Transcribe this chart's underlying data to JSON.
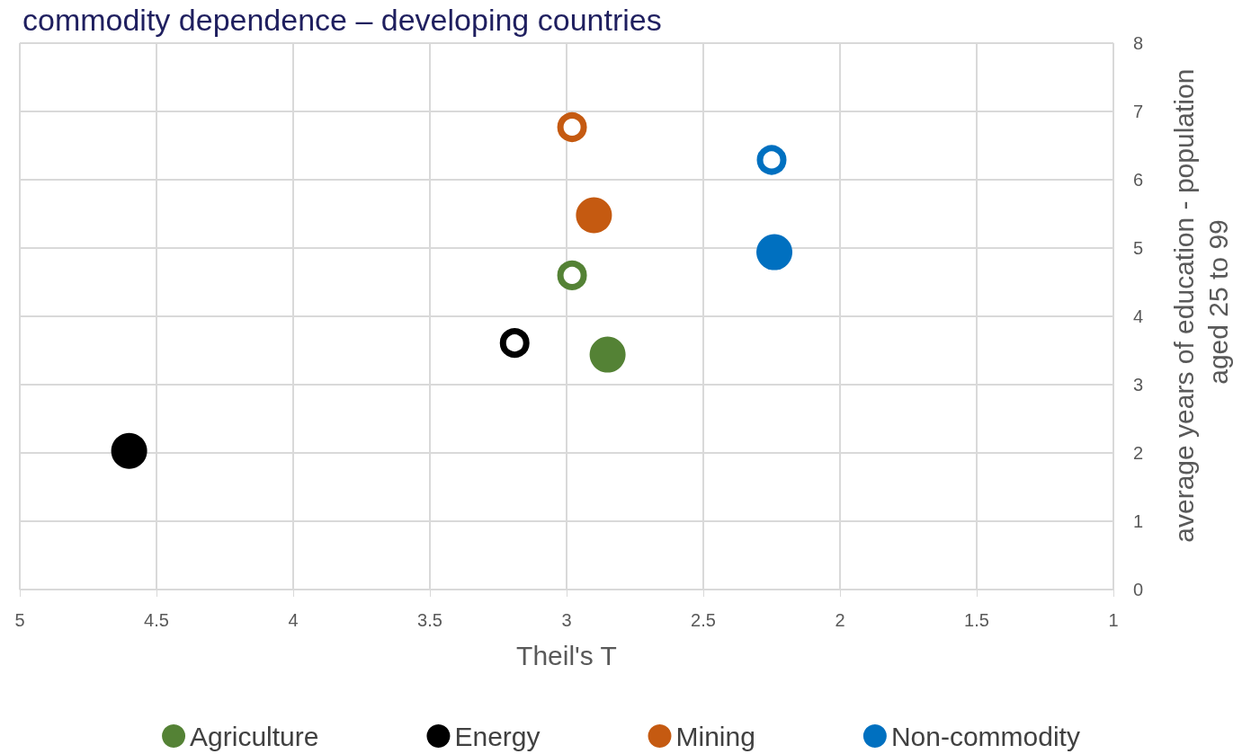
{
  "chart_data": {
    "type": "scatter",
    "title": "commodity dependence – developing countries",
    "xlabel": "Theil's T",
    "ylabel": "average years of education - population aged 25 to 99",
    "series": [
      {
        "name": "Agriculture",
        "color": "#548235",
        "x": [
          2.85
        ],
        "values": [
          3.44
        ]
      },
      {
        "name": "Energy",
        "color": "#000000",
        "x": [
          4.6
        ],
        "values": [
          2.03
        ]
      },
      {
        "name": "Mining",
        "color": "#c55a11",
        "x": [
          2.9
        ],
        "values": [
          5.48
        ]
      },
      {
        "name": "Non-commodity",
        "color": "#0070c0",
        "x": [
          2.24
        ],
        "values": [
          4.94
        ]
      },
      {
        "color": "#548235",
        "x": [
          2.98
        ],
        "values": [
          4.6
        ]
      },
      {
        "color": "#000000",
        "x": [
          3.19
        ],
        "values": [
          3.61
        ]
      },
      {
        "color": "#c55a11",
        "x": [
          2.98
        ],
        "values": [
          6.77
        ]
      },
      {
        "color": "#0070c0",
        "x": [
          2.25
        ],
        "values": [
          6.29
        ]
      }
    ],
    "xlim": [
      5,
      1
    ],
    "xticks": [
      5,
      4.5,
      4,
      3.5,
      3,
      2.5,
      2,
      1.5,
      1
    ],
    "ylim": [
      0,
      8
    ],
    "yticks": [
      0,
      1,
      2,
      3,
      4,
      5,
      6,
      7,
      8
    ],
    "grid": true,
    "legend": "bottom",
    "marker": "circle"
  }
}
